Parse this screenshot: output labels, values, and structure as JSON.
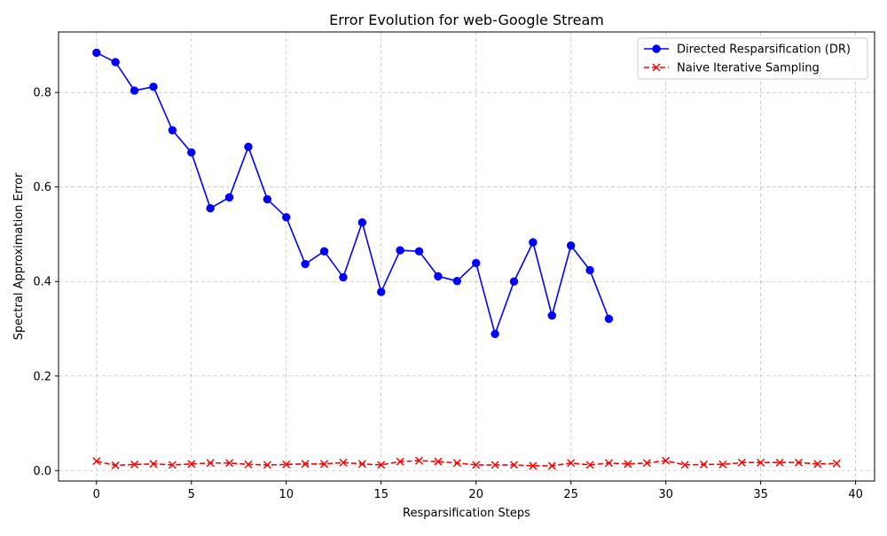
{
  "chart_data": {
    "type": "line",
    "title": "Error Evolution for web-Google Stream",
    "xlabel": "Resparsification Steps",
    "ylabel": "Spectral Approximation Error",
    "xlim": [
      -2,
      41
    ],
    "ylim": [
      -0.022,
      0.928
    ],
    "xticks": [
      0,
      5,
      10,
      15,
      20,
      25,
      30,
      35,
      40
    ],
    "yticks": [
      0.0,
      0.2,
      0.4,
      0.6,
      0.8
    ],
    "xtick_labels": [
      "0",
      "5",
      "10",
      "15",
      "20",
      "25",
      "30",
      "35",
      "40"
    ],
    "ytick_labels": [
      "0.0",
      "0.2",
      "0.4",
      "0.6",
      "0.8"
    ],
    "grid": true,
    "legend_position": "top-right",
    "series": [
      {
        "name": "Directed Resparsification (DR)",
        "color": "#0000ff",
        "marker": "circle",
        "linestyle": "solid",
        "x": [
          0,
          1,
          2,
          3,
          4,
          5,
          6,
          7,
          8,
          9,
          10,
          11,
          12,
          13,
          14,
          15,
          16,
          17,
          18,
          19,
          20,
          21,
          22,
          23,
          24,
          25,
          26,
          27
        ],
        "y": [
          0.884,
          0.864,
          0.804,
          0.812,
          0.72,
          0.673,
          0.555,
          0.578,
          0.685,
          0.574,
          0.536,
          0.437,
          0.464,
          0.409,
          0.525,
          0.378,
          0.466,
          0.464,
          0.411,
          0.401,
          0.439,
          0.289,
          0.4,
          0.483,
          0.328,
          0.476,
          0.424,
          0.321
        ]
      },
      {
        "name": "Naive Iterative Sampling",
        "color": "#ff0000",
        "marker": "x",
        "linestyle": "dashed",
        "x": [
          0,
          1,
          2,
          3,
          4,
          5,
          6,
          7,
          8,
          9,
          10,
          11,
          12,
          13,
          14,
          15,
          16,
          17,
          18,
          19,
          20,
          21,
          22,
          23,
          24,
          25,
          26,
          27,
          28,
          29,
          30,
          31,
          32,
          33,
          34,
          35,
          36,
          37,
          38,
          39
        ],
        "y": [
          0.02,
          0.011,
          0.013,
          0.014,
          0.012,
          0.014,
          0.016,
          0.016,
          0.013,
          0.012,
          0.013,
          0.014,
          0.014,
          0.017,
          0.014,
          0.012,
          0.019,
          0.021,
          0.019,
          0.016,
          0.012,
          0.012,
          0.012,
          0.01,
          0.01,
          0.016,
          0.012,
          0.016,
          0.014,
          0.016,
          0.021,
          0.012,
          0.013,
          0.013,
          0.017,
          0.017,
          0.017,
          0.017,
          0.014,
          0.015
        ]
      }
    ]
  }
}
